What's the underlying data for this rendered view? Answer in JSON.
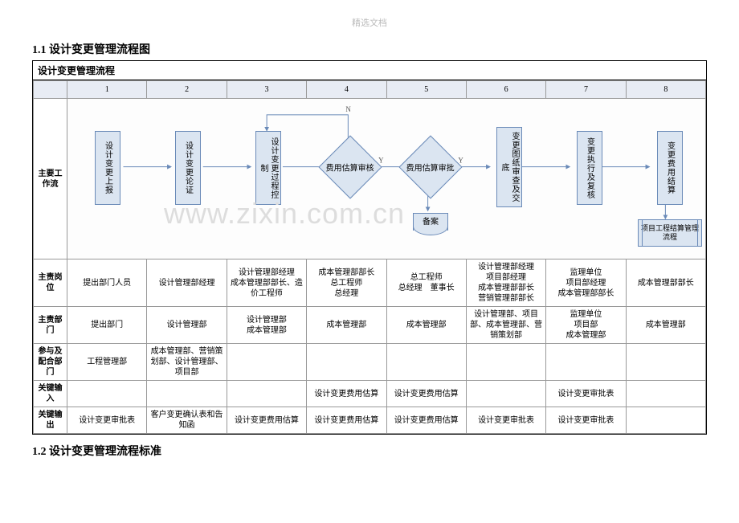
{
  "page_header": "精选文档",
  "section1_title": "1.1 设计变更管理流程图",
  "section2_title": "1.2 设计变更管理流程标准",
  "flow_title": "设计变更管理流程",
  "watermark": "www.zixin.com.cn",
  "columns": [
    "1",
    "2",
    "3",
    "4",
    "5",
    "6",
    "7",
    "8"
  ],
  "row_labels": {
    "workflow": "主要工作流",
    "position": "主责岗位",
    "dept": "主责部门",
    "coop": "参与及配合部门",
    "key_in": "关键输入",
    "key_out": "关键输出"
  },
  "nodes": {
    "n1": "设计变更上报",
    "n2": "设计变更论证",
    "n3": "设计变更过程控制",
    "n4": "费用估算审核",
    "n5": "费用估算审批",
    "n5doc": "备案",
    "n6": "变更图纸审查及交底",
    "n7": "变更执行及复核",
    "n8": "变更费用结算",
    "n8sub": "项目工程结算管理流程"
  },
  "labels": {
    "yes": "Y",
    "no": "N"
  },
  "rows": {
    "position": [
      "提出部门人员",
      "设计管理部经理",
      "设计管理部经理\n成本管理部部长、造价工程师",
      "成本管理部部长\n总工程师\n总经理",
      "总工程师\n总经理　董事长",
      "设计管理部经理\n项目部经理\n成本管理部部长\n营销管理部部长",
      "监理单位\n项目部经理\n成本管理部部长",
      "成本管理部部长"
    ],
    "dept": [
      "提出部门",
      "设计管理部",
      "设计管理部\n成本管理部",
      "成本管理部",
      "成本管理部",
      "设计管理部、项目部、成本管理部、营销策划部",
      "监理单位\n项目部\n成本管理部",
      "成本管理部"
    ],
    "coop": [
      "工程管理部",
      "成本管理部、营销策划部、设计管理部、项目部",
      "",
      "",
      "",
      "",
      "",
      ""
    ],
    "key_in": [
      "",
      "",
      "",
      "设计变更费用估算",
      "设计变更费用估算",
      "",
      "设计变更审批表",
      ""
    ],
    "key_out": [
      "设计变更审批表",
      "客户变更确认表和告知函",
      "设计变更费用估算",
      "设计变更费用估算",
      "设计变更费用估算",
      "设计变更审批表",
      "设计变更审批表",
      ""
    ]
  },
  "colors": {
    "node_fill": "#dbe5f1",
    "node_border": "#6a8ab8",
    "header_fill": "#e8ecf4",
    "grid_border": "#999999"
  }
}
